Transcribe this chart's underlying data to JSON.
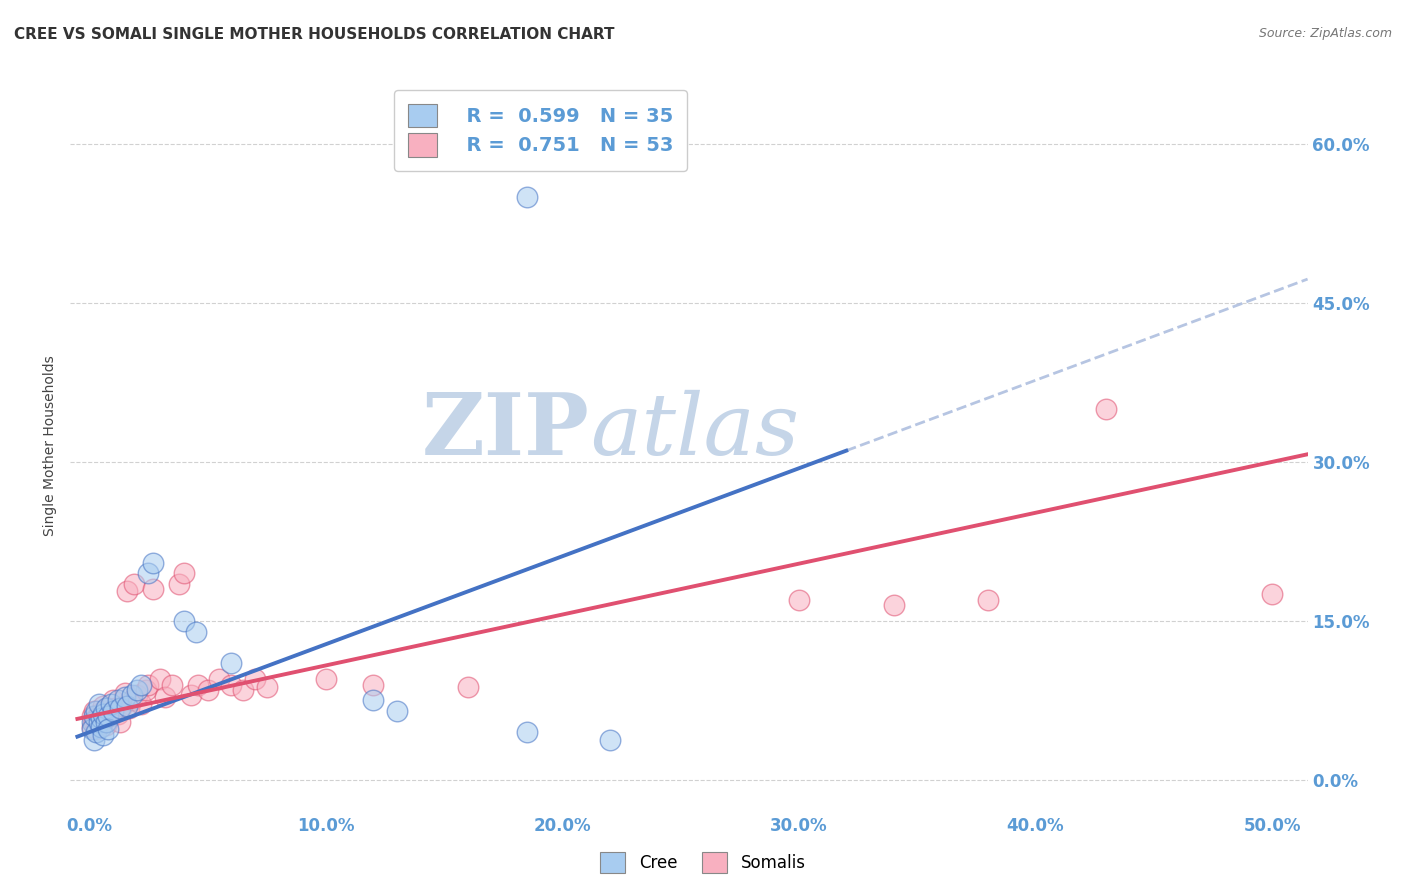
{
  "title": "CREE VS SOMALI SINGLE MOTHER HOUSEHOLDS CORRELATION CHART",
  "source": "Source: ZipAtlas.com",
  "xlabel_ticks": [
    "0.0%",
    "10.0%",
    "20.0%",
    "30.0%",
    "40.0%",
    "50.0%"
  ],
  "xlabel_vals": [
    0.0,
    0.1,
    0.2,
    0.3,
    0.4,
    0.5
  ],
  "ylabel": "Single Mother Households",
  "ylabel_ticks": [
    "0.0%",
    "15.0%",
    "30.0%",
    "45.0%",
    "60.0%"
  ],
  "ylabel_vals": [
    0.0,
    0.15,
    0.3,
    0.45,
    0.6
  ],
  "ylim": [
    -0.03,
    0.66
  ],
  "xlim": [
    -0.008,
    0.515
  ],
  "cree_R": 0.599,
  "cree_N": 35,
  "somali_R": 0.751,
  "somali_N": 53,
  "cree_color": "#A8CCF0",
  "somali_color": "#F8B0C0",
  "cree_line_color": "#4472C4",
  "somali_line_color": "#E05070",
  "cree_dash_color": "#AABBDD",
  "cree_scatter": [
    [
      0.001,
      0.055
    ],
    [
      0.001,
      0.048
    ],
    [
      0.002,
      0.06
    ],
    [
      0.002,
      0.038
    ],
    [
      0.003,
      0.065
    ],
    [
      0.003,
      0.045
    ],
    [
      0.004,
      0.055
    ],
    [
      0.004,
      0.072
    ],
    [
      0.005,
      0.058
    ],
    [
      0.005,
      0.05
    ],
    [
      0.006,
      0.062
    ],
    [
      0.006,
      0.042
    ],
    [
      0.007,
      0.068
    ],
    [
      0.007,
      0.055
    ],
    [
      0.008,
      0.06
    ],
    [
      0.008,
      0.048
    ],
    [
      0.009,
      0.072
    ],
    [
      0.01,
      0.065
    ],
    [
      0.012,
      0.075
    ],
    [
      0.013,
      0.068
    ],
    [
      0.015,
      0.078
    ],
    [
      0.016,
      0.07
    ],
    [
      0.018,
      0.08
    ],
    [
      0.02,
      0.085
    ],
    [
      0.022,
      0.09
    ],
    [
      0.025,
      0.195
    ],
    [
      0.027,
      0.205
    ],
    [
      0.04,
      0.15
    ],
    [
      0.045,
      0.14
    ],
    [
      0.06,
      0.11
    ],
    [
      0.12,
      0.075
    ],
    [
      0.13,
      0.065
    ],
    [
      0.185,
      0.045
    ],
    [
      0.22,
      0.038
    ],
    [
      0.185,
      0.55
    ]
  ],
  "somali_scatter": [
    [
      0.001,
      0.06
    ],
    [
      0.001,
      0.05
    ],
    [
      0.002,
      0.065
    ],
    [
      0.002,
      0.055
    ],
    [
      0.003,
      0.058
    ],
    [
      0.003,
      0.048
    ],
    [
      0.004,
      0.062
    ],
    [
      0.004,
      0.052
    ],
    [
      0.005,
      0.06
    ],
    [
      0.005,
      0.055
    ],
    [
      0.006,
      0.065
    ],
    [
      0.006,
      0.07
    ],
    [
      0.007,
      0.058
    ],
    [
      0.007,
      0.052
    ],
    [
      0.008,
      0.068
    ],
    [
      0.008,
      0.062
    ],
    [
      0.009,
      0.06
    ],
    [
      0.01,
      0.075
    ],
    [
      0.011,
      0.068
    ],
    [
      0.012,
      0.062
    ],
    [
      0.013,
      0.055
    ],
    [
      0.014,
      0.07
    ],
    [
      0.015,
      0.082
    ],
    [
      0.016,
      0.178
    ],
    [
      0.017,
      0.068
    ],
    [
      0.018,
      0.075
    ],
    [
      0.019,
      0.185
    ],
    [
      0.02,
      0.08
    ],
    [
      0.022,
      0.072
    ],
    [
      0.024,
      0.085
    ],
    [
      0.025,
      0.09
    ],
    [
      0.027,
      0.18
    ],
    [
      0.03,
      0.095
    ],
    [
      0.032,
      0.078
    ],
    [
      0.035,
      0.09
    ],
    [
      0.038,
      0.185
    ],
    [
      0.04,
      0.195
    ],
    [
      0.043,
      0.08
    ],
    [
      0.046,
      0.09
    ],
    [
      0.05,
      0.085
    ],
    [
      0.055,
      0.095
    ],
    [
      0.06,
      0.09
    ],
    [
      0.065,
      0.085
    ],
    [
      0.07,
      0.095
    ],
    [
      0.075,
      0.088
    ],
    [
      0.1,
      0.095
    ],
    [
      0.12,
      0.09
    ],
    [
      0.16,
      0.088
    ],
    [
      0.3,
      0.17
    ],
    [
      0.34,
      0.165
    ],
    [
      0.38,
      0.17
    ],
    [
      0.43,
      0.35
    ],
    [
      0.5,
      0.175
    ]
  ],
  "grid_color": "#CCCCCC",
  "background_color": "#FFFFFF",
  "watermark_zip": "ZIP",
  "watermark_atlas": "atlas",
  "watermark_color_zip": "#C5D5E8",
  "watermark_color_atlas": "#C5D5E8",
  "title_fontsize": 11,
  "tick_label_color": "#5B9BD5"
}
